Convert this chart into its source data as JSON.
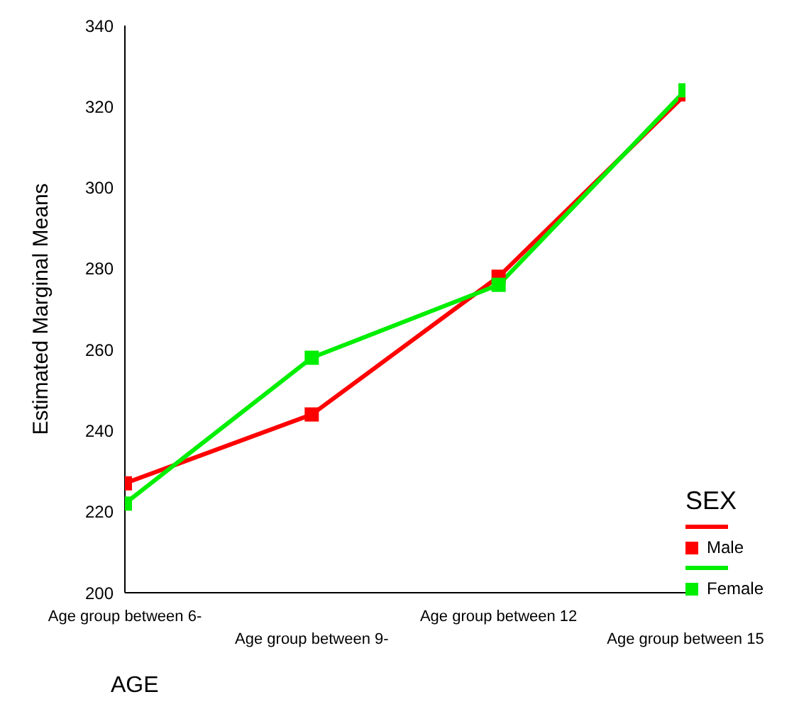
{
  "chart_data": {
    "type": "line",
    "xlabel": "AGE",
    "ylabel": "Estimated Marginal Means",
    "legend_title": "SEX",
    "categories": [
      "Age group between 6-",
      "Age group between 9-",
      "Age group between 12",
      "Age group between 15"
    ],
    "series": [
      {
        "name": "Male",
        "color": "#ff0000",
        "values": [
          227,
          244,
          278,
          323
        ]
      },
      {
        "name": "Female",
        "color": "#00ee00",
        "values": [
          222,
          258,
          276,
          324
        ]
      }
    ],
    "ylim": [
      200,
      340
    ],
    "yticks": [
      200,
      220,
      240,
      260,
      280,
      300,
      320,
      340
    ],
    "grid": false,
    "legend": "right",
    "marker": "square",
    "line_style": "solid"
  }
}
